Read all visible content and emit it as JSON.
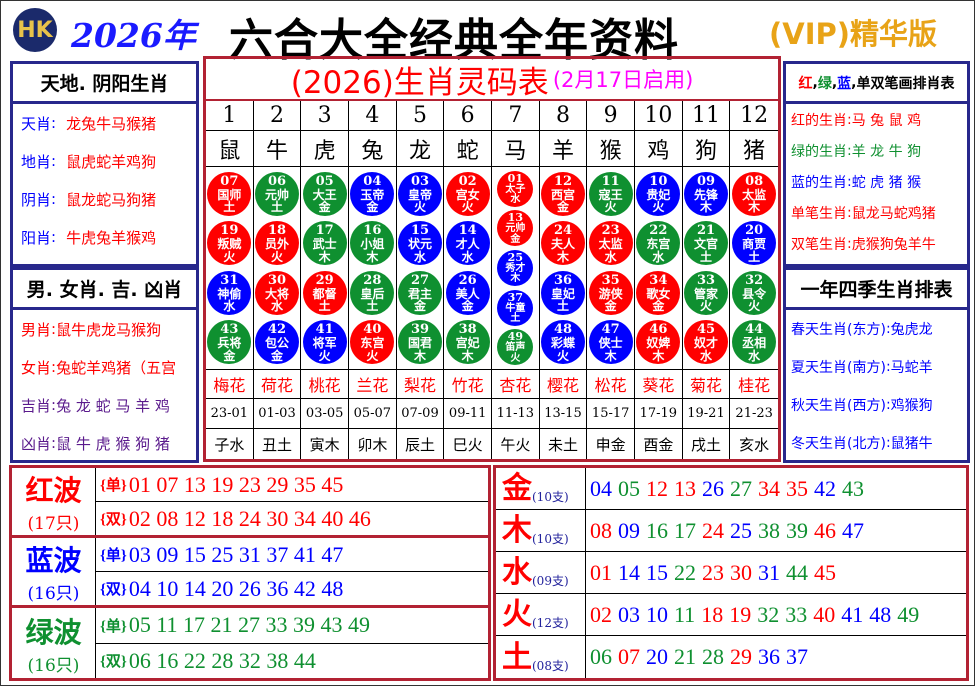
{
  "header": {
    "logo": "HK",
    "year": "2026年",
    "title": "六合大全经典全年资料",
    "vip": "(VIP)精华版"
  },
  "colors": {
    "red": "#ff0000",
    "green": "#0f9030",
    "blue": "#0000ff",
    "frame_red": "#b22233",
    "frame_navy": "#28288c",
    "vip": "#e8a317",
    "magenta": "#ff00ff"
  },
  "left_top": {
    "title": "天地. 阴阳生肖",
    "rows": [
      {
        "k": "天肖",
        "v": "龙兔牛马猴猪"
      },
      {
        "k": "地肖",
        "v": "鼠虎蛇羊鸡狗"
      },
      {
        "k": "阴肖",
        "v": "鼠龙蛇马狗猪"
      },
      {
        "k": "阳肖",
        "v": "牛虎兔羊猴鸡"
      }
    ]
  },
  "left_bottom": {
    "title": "男. 女肖. 吉. 凶肖",
    "rows": [
      {
        "k": "男肖",
        "v": "鼠牛虎龙马猴狗"
      },
      {
        "k": "女肖",
        "v": "兔蛇羊鸡猪（五宫"
      },
      {
        "k": "吉肖",
        "v": "兔 龙 蛇 马 羊 鸡"
      },
      {
        "k": "凶肖",
        "v": "鼠 牛 虎 猴 狗 猪"
      }
    ]
  },
  "right_top": {
    "title_parts": [
      "红",
      "绿",
      "蓝",
      "单双笔画排肖表"
    ],
    "rows": [
      {
        "k": "红的生肖",
        "v": "马 兔 鼠 鸡",
        "c": "red"
      },
      {
        "k": "绿的生肖",
        "v": "羊 龙 牛 狗",
        "c": "green"
      },
      {
        "k": "蓝的生肖",
        "v": "蛇 虎 猪 猴",
        "c": "blue"
      },
      {
        "k": "单笔生肖",
        "v": "鼠龙马蛇鸡猪",
        "c": "red"
      },
      {
        "k": "双笔生肖",
        "v": "虎猴狗兔羊牛",
        "c": "red"
      }
    ]
  },
  "right_bottom": {
    "title": "一年四季生肖排表",
    "rows": [
      {
        "k": "春天生肖(东方)",
        "v": "兔虎龙"
      },
      {
        "k": "夏天生肖(南方)",
        "v": "马蛇羊"
      },
      {
        "k": "秋天生肖(西方)",
        "v": "鸡猴狗"
      },
      {
        "k": "冬天生肖(北方)",
        "v": "鼠猪牛"
      }
    ]
  },
  "center": {
    "title": "(2026)生肖灵码表",
    "subtitle": "(2月17日启用)",
    "columns": [
      {
        "no": "1",
        "zodiac": "鼠",
        "flower": "梅花",
        "time": "23-01",
        "branch": "子水",
        "balls": [
          [
            "07",
            "国师",
            "土",
            "red"
          ],
          [
            "19",
            "叛贼",
            "火",
            "red"
          ],
          [
            "31",
            "神偷",
            "水",
            "blue"
          ],
          [
            "43",
            "兵将",
            "金",
            "green"
          ]
        ]
      },
      {
        "no": "2",
        "zodiac": "牛",
        "flower": "荷花",
        "time": "01-03",
        "branch": "丑土",
        "balls": [
          [
            "06",
            "元帅",
            "土",
            "green"
          ],
          [
            "18",
            "员外",
            "火",
            "red"
          ],
          [
            "30",
            "大将",
            "水",
            "red"
          ],
          [
            "42",
            "包公",
            "金",
            "blue"
          ]
        ]
      },
      {
        "no": "3",
        "zodiac": "虎",
        "flower": "桃花",
        "time": "03-05",
        "branch": "寅木",
        "balls": [
          [
            "05",
            "大王",
            "金",
            "green"
          ],
          [
            "17",
            "武士",
            "木",
            "green"
          ],
          [
            "29",
            "都督",
            "土",
            "red"
          ],
          [
            "41",
            "将军",
            "火",
            "blue"
          ]
        ]
      },
      {
        "no": "4",
        "zodiac": "兔",
        "flower": "兰花",
        "time": "05-07",
        "branch": "卯木",
        "balls": [
          [
            "04",
            "玉帝",
            "金",
            "blue"
          ],
          [
            "16",
            "小姐",
            "木",
            "green"
          ],
          [
            "28",
            "皇后",
            "土",
            "green"
          ],
          [
            "40",
            "东宫",
            "火",
            "red"
          ]
        ]
      },
      {
        "no": "5",
        "zodiac": "龙",
        "flower": "梨花",
        "time": "07-09",
        "branch": "辰土",
        "balls": [
          [
            "03",
            "皇帝",
            "火",
            "blue"
          ],
          [
            "15",
            "状元",
            "水",
            "blue"
          ],
          [
            "27",
            "君主",
            "金",
            "green"
          ],
          [
            "39",
            "国君",
            "木",
            "green"
          ]
        ]
      },
      {
        "no": "6",
        "zodiac": "蛇",
        "flower": "竹花",
        "time": "09-11",
        "branch": "巳火",
        "balls": [
          [
            "02",
            "宫女",
            "火",
            "red"
          ],
          [
            "14",
            "才人",
            "水",
            "blue"
          ],
          [
            "26",
            "美人",
            "金",
            "blue"
          ],
          [
            "38",
            "宫妃",
            "木",
            "green"
          ]
        ]
      },
      {
        "no": "7",
        "zodiac": "马",
        "flower": "杏花",
        "time": "11-13",
        "branch": "午火",
        "balls": [
          [
            "01",
            "太子",
            "水",
            "red"
          ],
          [
            "13",
            "元帅",
            "金",
            "red"
          ],
          [
            "25",
            "秀才",
            "木",
            "blue"
          ],
          [
            "37",
            "牛童",
            "土",
            "blue"
          ],
          [
            "49",
            "笛声",
            "火",
            "green"
          ]
        ]
      },
      {
        "no": "8",
        "zodiac": "羊",
        "flower": "樱花",
        "time": "13-15",
        "branch": "未土",
        "balls": [
          [
            "12",
            "西宫",
            "金",
            "red"
          ],
          [
            "24",
            "夫人",
            "木",
            "red"
          ],
          [
            "36",
            "皇妃",
            "土",
            "blue"
          ],
          [
            "48",
            "彩蝶",
            "火",
            "blue"
          ]
        ]
      },
      {
        "no": "9",
        "zodiac": "猴",
        "flower": "松花",
        "time": "15-17",
        "branch": "申金",
        "balls": [
          [
            "11",
            "寇王",
            "火",
            "green"
          ],
          [
            "23",
            "太监",
            "水",
            "red"
          ],
          [
            "35",
            "游侠",
            "金",
            "red"
          ],
          [
            "47",
            "侠士",
            "木",
            "blue"
          ]
        ]
      },
      {
        "no": "10",
        "zodiac": "鸡",
        "flower": "葵花",
        "time": "17-19",
        "branch": "酉金",
        "balls": [
          [
            "10",
            "贵妃",
            "火",
            "blue"
          ],
          [
            "22",
            "东宫",
            "水",
            "green"
          ],
          [
            "34",
            "歌女",
            "金",
            "red"
          ],
          [
            "46",
            "奴婢",
            "木",
            "red"
          ]
        ]
      },
      {
        "no": "11",
        "zodiac": "狗",
        "flower": "菊花",
        "time": "19-21",
        "branch": "戌土",
        "balls": [
          [
            "09",
            "先锋",
            "木",
            "blue"
          ],
          [
            "21",
            "文官",
            "土",
            "green"
          ],
          [
            "33",
            "管家",
            "火",
            "green"
          ],
          [
            "45",
            "奴才",
            "水",
            "red"
          ]
        ]
      },
      {
        "no": "12",
        "zodiac": "猪",
        "flower": "桂花",
        "time": "21-23",
        "branch": "亥水",
        "balls": [
          [
            "08",
            "太监",
            "木",
            "red"
          ],
          [
            "20",
            "商贾",
            "土",
            "blue"
          ],
          [
            "32",
            "县令",
            "火",
            "green"
          ],
          [
            "44",
            "丞相",
            "水",
            "green"
          ]
        ]
      }
    ]
  },
  "waves": [
    {
      "name": "红波",
      "count": "(17只)",
      "color": "red",
      "odd_label": "{单}",
      "odd": "01 07 13 19 23 29 35 45",
      "even_label": "{双}",
      "even": "02 08 12 18 24 30 34 40 46"
    },
    {
      "name": "蓝波",
      "count": "(16只)",
      "color": "blue",
      "odd_label": "{单}",
      "odd": "03 09 15 25 31 37 41 47",
      "even_label": "{双}",
      "even": "04 10 14 20 26 36 42 48"
    },
    {
      "name": "绿波",
      "count": "(16只)",
      "color": "green",
      "odd_label": "{单}",
      "odd": "05 11 17 21 27 33 39 43 49",
      "even_label": "{双}",
      "even": "06 16 22 28 32 38 44"
    }
  ],
  "elements": [
    {
      "name": "金",
      "count": "(10支)",
      "numbers": [
        "04",
        "05",
        "12",
        "13",
        "26",
        "27",
        "34",
        "35",
        "42",
        "43"
      ]
    },
    {
      "name": "木",
      "count": "(10支)",
      "numbers": [
        "08",
        "09",
        "16",
        "17",
        "24",
        "25",
        "38",
        "39",
        "46",
        "47"
      ]
    },
    {
      "name": "水",
      "count": "(09支)",
      "numbers": [
        "01",
        "14",
        "15",
        "22",
        "23",
        "30",
        "31",
        "44",
        "45"
      ]
    },
    {
      "name": "火",
      "count": "(12支)",
      "numbers": [
        "02",
        "03",
        "10",
        "11",
        "18",
        "19",
        "32",
        "33",
        "40",
        "41",
        "48",
        "49"
      ]
    },
    {
      "name": "土",
      "count": "(08支)",
      "numbers": [
        "06",
        "07",
        "20",
        "21",
        "28",
        "29",
        "36",
        "37"
      ]
    }
  ]
}
